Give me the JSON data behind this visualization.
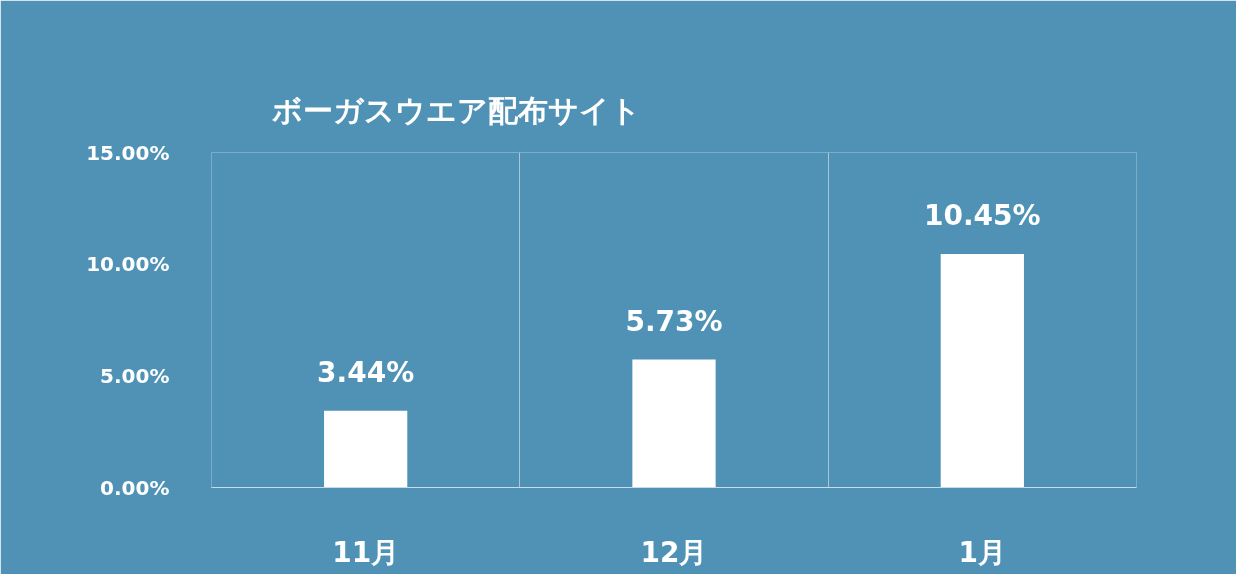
{
  "chart_data": {
    "type": "bar",
    "title": "ボーガスウエア配布サイト",
    "categories": [
      "11月",
      "12月",
      "1月"
    ],
    "values": [
      3.44,
      5.73,
      10.45
    ],
    "value_labels": [
      "3.44%",
      "5.73%",
      "10.45%"
    ],
    "color": "#ffffff",
    "ylim": [
      0,
      15
    ],
    "yticks": [
      {
        "value": 0,
        "label": "0.00%"
      },
      {
        "value": 5,
        "label": "5.00%"
      },
      {
        "value": 10,
        "label": "10.00%"
      },
      {
        "value": 15,
        "label": "15.00%"
      }
    ],
    "grid": "x"
  }
}
